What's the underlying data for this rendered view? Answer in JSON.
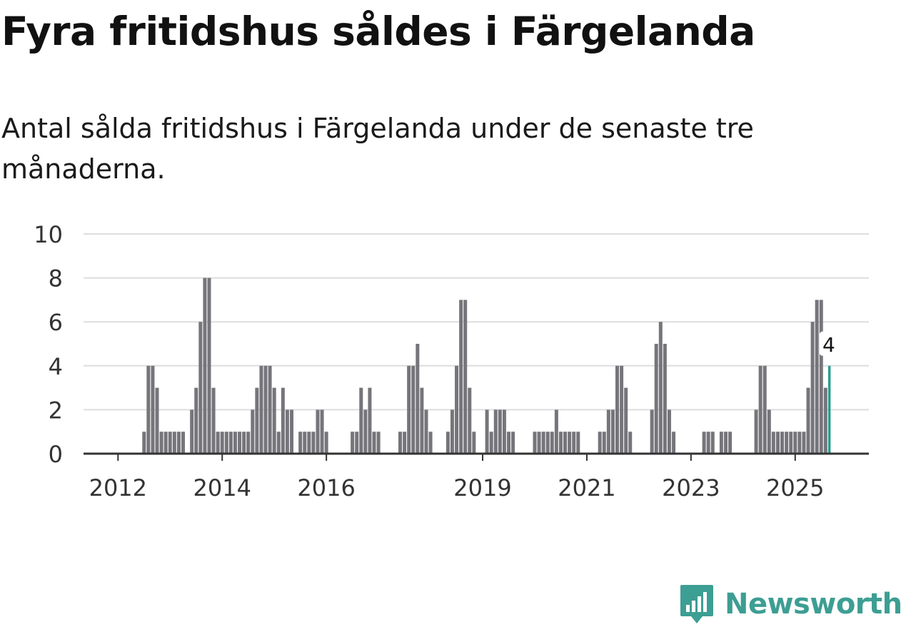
{
  "title": "Fyra fritidshus såldes i Färgelanda",
  "subtitle": "Antal sålda fritidshus i Färgelanda under de senaste tre månaderna.",
  "brand": {
    "name": "Newsworthy",
    "color": "#3d9e93",
    "icon": "bar-chart-speech-bubble-icon"
  },
  "colors": {
    "bar": "#76757b",
    "highlight": "#2a9d90",
    "grid": "#dddddd",
    "axis": "#333333"
  },
  "chart_data": {
    "type": "bar",
    "title": "Fyra fritidshus såldes i Färgelanda",
    "xlabel": "",
    "ylabel": "",
    "ylim": [
      0,
      10
    ],
    "yticks": [
      0,
      2,
      4,
      6,
      8,
      10
    ],
    "grid": true,
    "series": [
      {
        "name": "Antal sålda fritidshus (rullande tre månader)",
        "start": "2011-07",
        "frequency": "monthly",
        "values": [
          0,
          0,
          0,
          0,
          0,
          0,
          0,
          0,
          0,
          0,
          0,
          0,
          1,
          4,
          4,
          3,
          1,
          1,
          1,
          1,
          1,
          1,
          0,
          2,
          3,
          6,
          8,
          8,
          3,
          1,
          1,
          1,
          1,
          1,
          1,
          1,
          1,
          2,
          3,
          4,
          4,
          4,
          3,
          1,
          3,
          2,
          2,
          0,
          1,
          1,
          1,
          1,
          2,
          2,
          1,
          0,
          0,
          0,
          0,
          0,
          1,
          1,
          3,
          2,
          3,
          1,
          1,
          0,
          0,
          0,
          0,
          1,
          1,
          4,
          4,
          5,
          3,
          2,
          1,
          0,
          0,
          0,
          1,
          2,
          4,
          7,
          7,
          3,
          1,
          0,
          0,
          2,
          1,
          2,
          2,
          2,
          1,
          1,
          0,
          0,
          0,
          0,
          1,
          1,
          1,
          1,
          1,
          2,
          1,
          1,
          1,
          1,
          1,
          0,
          0,
          0,
          0,
          1,
          1,
          2,
          2,
          4,
          4,
          3,
          1,
          0,
          0,
          0,
          0,
          2,
          5,
          6,
          5,
          2,
          1,
          0,
          0,
          0,
          0,
          0,
          0,
          1,
          1,
          1,
          0,
          1,
          1,
          1,
          0,
          0,
          0,
          0,
          0,
          2,
          4,
          4,
          2,
          1,
          1,
          1,
          1,
          1,
          1,
          1,
          1,
          3,
          6,
          7,
          7,
          3,
          4
        ]
      }
    ],
    "x_ticks": [
      {
        "label": "2012",
        "month": "2012-01"
      },
      {
        "label": "2014",
        "month": "2014-01"
      },
      {
        "label": "2016",
        "month": "2016-01"
      },
      {
        "label": "2019",
        "month": "2019-01"
      },
      {
        "label": "2021",
        "month": "2021-01"
      },
      {
        "label": "2023",
        "month": "2023-01"
      },
      {
        "label": "2025",
        "month": "2025-01"
      }
    ],
    "annotations": [
      {
        "text": "4",
        "month": "2025-09",
        "value": 4
      }
    ]
  }
}
